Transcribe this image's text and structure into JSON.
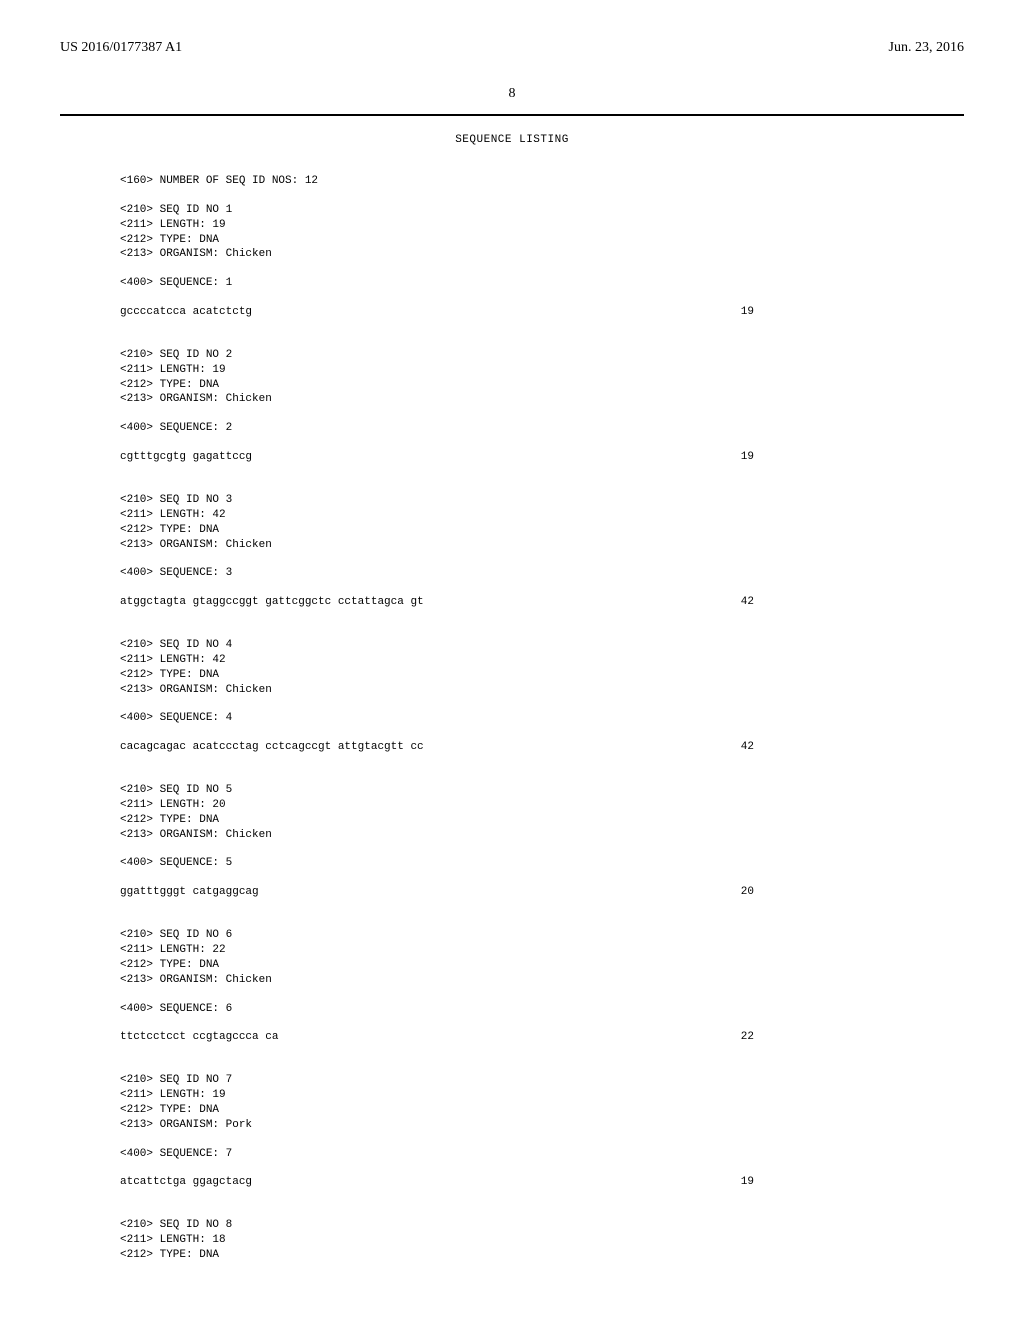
{
  "header": {
    "pub_number": "US 2016/0177387 A1",
    "pub_date": "Jun. 23, 2016"
  },
  "page_number": "8",
  "listing_title": "SEQUENCE LISTING",
  "num_seq_line": "<160> NUMBER OF SEQ ID NOS: 12",
  "entries": [
    {
      "meta": "<210> SEQ ID NO 1\n<211> LENGTH: 19\n<212> TYPE: DNA\n<213> ORGANISM: Chicken",
      "seq_header": "<400> SEQUENCE: 1",
      "sequence": "gccccatcca acatctctg",
      "length_label": "19"
    },
    {
      "meta": "<210> SEQ ID NO 2\n<211> LENGTH: 19\n<212> TYPE: DNA\n<213> ORGANISM: Chicken",
      "seq_header": "<400> SEQUENCE: 2",
      "sequence": "cgtttgcgtg gagattccg",
      "length_label": "19"
    },
    {
      "meta": "<210> SEQ ID NO 3\n<211> LENGTH: 42\n<212> TYPE: DNA\n<213> ORGANISM: Chicken",
      "seq_header": "<400> SEQUENCE: 3",
      "sequence": "atggctagta gtaggccggt gattcggctc cctattagca gt",
      "length_label": "42"
    },
    {
      "meta": "<210> SEQ ID NO 4\n<211> LENGTH: 42\n<212> TYPE: DNA\n<213> ORGANISM: Chicken",
      "seq_header": "<400> SEQUENCE: 4",
      "sequence": "cacagcagac acatccctag cctcagccgt attgtacgtt cc",
      "length_label": "42"
    },
    {
      "meta": "<210> SEQ ID NO 5\n<211> LENGTH: 20\n<212> TYPE: DNA\n<213> ORGANISM: Chicken",
      "seq_header": "<400> SEQUENCE: 5",
      "sequence": "ggatttgggt catgaggcag",
      "length_label": "20"
    },
    {
      "meta": "<210> SEQ ID NO 6\n<211> LENGTH: 22\n<212> TYPE: DNA\n<213> ORGANISM: Chicken",
      "seq_header": "<400> SEQUENCE: 6",
      "sequence": "ttctcctcct ccgtagccca ca",
      "length_label": "22"
    },
    {
      "meta": "<210> SEQ ID NO 7\n<211> LENGTH: 19\n<212> TYPE: DNA\n<213> ORGANISM: Pork",
      "seq_header": "<400> SEQUENCE: 7",
      "sequence": "atcattctga ggagctacg",
      "length_label": "19"
    },
    {
      "meta": "<210> SEQ ID NO 8\n<211> LENGTH: 18\n<212> TYPE: DNA",
      "seq_header": "",
      "sequence": "",
      "length_label": ""
    }
  ]
}
